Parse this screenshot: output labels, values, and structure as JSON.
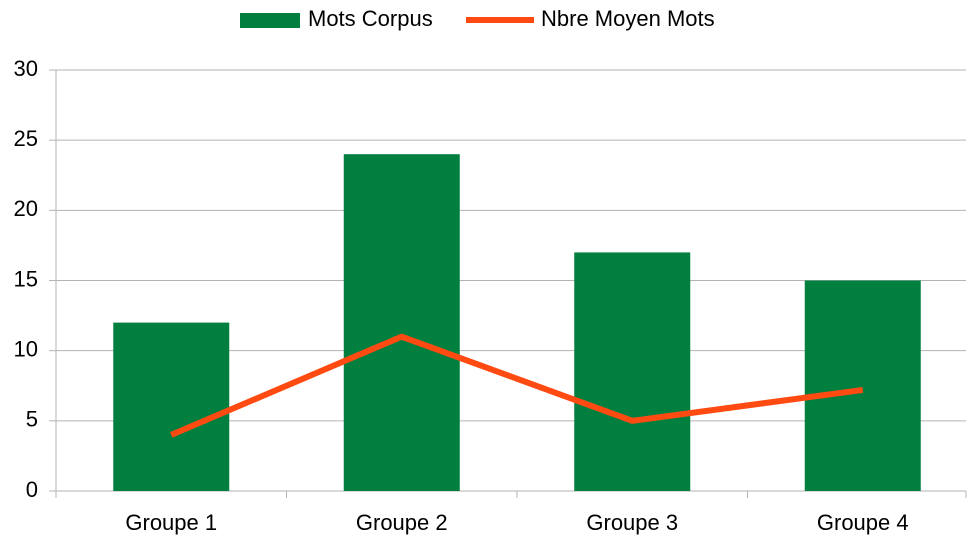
{
  "chart_data": {
    "type": "bar",
    "categories": [
      "Groupe 1",
      "Groupe 2",
      "Groupe 3",
      "Groupe 4"
    ],
    "series": [
      {
        "name": "Mots Corpus",
        "type": "bar",
        "color": "#007f3f",
        "values": [
          12,
          24,
          17,
          15
        ]
      },
      {
        "name": "Nbre Moyen Mots",
        "type": "line",
        "color": "#ff4a12",
        "values": [
          4,
          11,
          5,
          7.2
        ]
      }
    ],
    "ylim": [
      0,
      30
    ],
    "yticks": [
      0,
      5,
      10,
      15,
      20,
      25,
      30
    ],
    "grid": true,
    "legend": "top"
  }
}
